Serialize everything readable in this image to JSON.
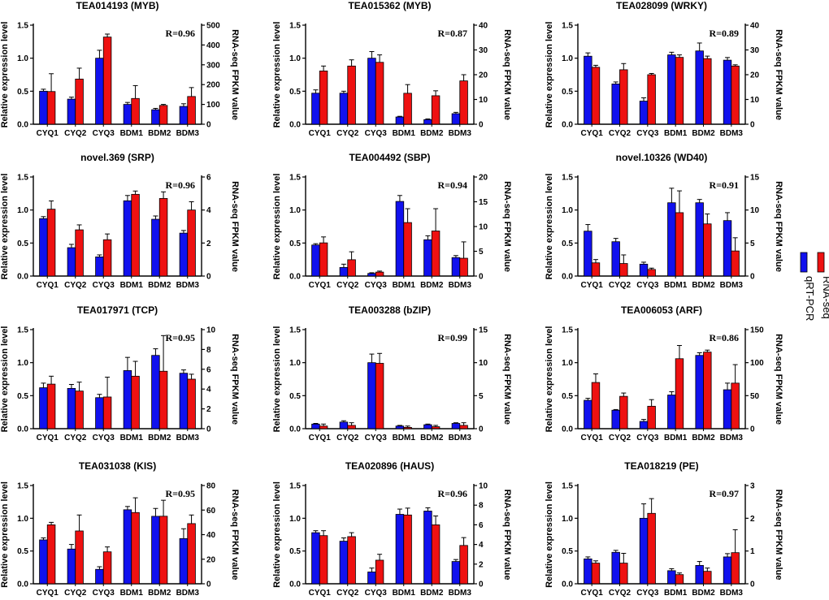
{
  "figure": {
    "colors": {
      "qrt": "#1111ee",
      "rnaseq": "#ee1111"
    },
    "legend": {
      "qrt_label": "qRT-PCR",
      "rnaseq_label": "RNA-seq"
    }
  },
  "chart_data": [
    {
      "type": "bar",
      "title": "TEA014193 (MYB)",
      "r_label": "R=0.96",
      "categories": [
        "CYQ1",
        "CYQ2",
        "CYQ3",
        "BDM1",
        "BDM2",
        "BDM3"
      ],
      "ylabel": "Relative expression level",
      "y2label": "RNA-seq FPKM value",
      "ylim": [
        0,
        1.5
      ],
      "yticks": [
        0,
        0.5,
        1.0,
        1.5
      ],
      "ytick_labels": [
        "0.0",
        "0.5",
        "1.0",
        "1.5"
      ],
      "y2lim": [
        0,
        500
      ],
      "y2ticks": [
        0,
        100,
        200,
        300,
        400,
        500
      ],
      "series": [
        {
          "name": "qRT-PCR",
          "axis": "left",
          "values": [
            0.5,
            0.38,
            1.0,
            0.3,
            0.22,
            0.27
          ],
          "errors": [
            0.03,
            0.03,
            0.12,
            0.03,
            0.02,
            0.04
          ]
        },
        {
          "name": "RNA-seq",
          "axis": "right",
          "values": [
            165,
            228,
            440,
            130,
            95,
            140
          ],
          "errors": [
            90,
            55,
            15,
            65,
            5,
            45
          ]
        }
      ]
    },
    {
      "type": "bar",
      "title": "TEA015362 (MYB)",
      "r_label": "R=0.87",
      "categories": [
        "CYQ1",
        "CYQ2",
        "CYQ3",
        "BDM1",
        "BDM2",
        "BDM3"
      ],
      "ylabel": "Relative expression level",
      "y2label": "RNA-seq FPKM value",
      "ylim": [
        0,
        1.5
      ],
      "yticks": [
        0,
        0.5,
        1.0,
        1.5
      ],
      "ytick_labels": [
        "0.0",
        "0.5",
        "1.0",
        "1.5"
      ],
      "y2lim": [
        0,
        40
      ],
      "y2ticks": [
        0,
        10,
        20,
        30,
        40
      ],
      "series": [
        {
          "name": "qRT-PCR",
          "axis": "left",
          "values": [
            0.47,
            0.47,
            1.0,
            0.11,
            0.07,
            0.16
          ],
          "errors": [
            0.05,
            0.03,
            0.1,
            0.01,
            0.01,
            0.02
          ]
        },
        {
          "name": "RNA-seq",
          "axis": "right",
          "values": [
            21.5,
            23.5,
            25,
            12.5,
            11.5,
            17.5
          ],
          "errors": [
            2,
            2.5,
            3,
            3.5,
            2,
            2.5
          ]
        }
      ]
    },
    {
      "type": "bar",
      "title": "TEA028099 (WRKY)",
      "r_label": "R=0.89",
      "categories": [
        "CYQ1",
        "CYQ2",
        "CYQ3",
        "BDM1",
        "BDM2",
        "BDM3"
      ],
      "ylabel": "Relative expression level",
      "y2label": "RNA-seq FPKM value",
      "ylim": [
        0,
        1.5
      ],
      "yticks": [
        0,
        0.5,
        1.0,
        1.5
      ],
      "ytick_labels": [
        "0.0",
        "0.5",
        "1.0",
        "1.5"
      ],
      "y2lim": [
        0,
        40
      ],
      "y2ticks": [
        0,
        10,
        20,
        30,
        40
      ],
      "series": [
        {
          "name": "qRT-PCR",
          "axis": "left",
          "values": [
            1.03,
            0.61,
            0.35,
            1.05,
            1.11,
            0.97
          ],
          "errors": [
            0.05,
            0.03,
            0.05,
            0.04,
            0.12,
            0.04
          ]
        },
        {
          "name": "RNA-seq",
          "axis": "right",
          "values": [
            23,
            22,
            20,
            27,
            26.5,
            23.5
          ],
          "errors": [
            0.8,
            2.5,
            0.5,
            1,
            1,
            0.5
          ]
        }
      ]
    },
    {
      "type": "bar",
      "title": "novel.369 (SRP)",
      "r_label": "R=0.96",
      "categories": [
        "CYQ1",
        "CYQ2",
        "CYQ3",
        "BDM1",
        "BDM2",
        "BDM3"
      ],
      "ylabel": "Relative expression level",
      "y2label": "RNA-seq FPKM value",
      "ylim": [
        0,
        1.5
      ],
      "yticks": [
        0,
        0.5,
        1.0,
        1.5
      ],
      "ytick_labels": [
        "0.0",
        "0.5",
        "1.0",
        "1.5"
      ],
      "y2lim": [
        0,
        6
      ],
      "y2ticks": [
        0,
        2,
        4,
        6
      ],
      "series": [
        {
          "name": "qRT-PCR",
          "axis": "left",
          "values": [
            0.87,
            0.43,
            0.29,
            1.14,
            0.86,
            0.65
          ],
          "errors": [
            0.03,
            0.05,
            0.03,
            0.08,
            0.05,
            0.04
          ]
        },
        {
          "name": "RNA-seq",
          "axis": "right",
          "values": [
            4.05,
            2.8,
            2.2,
            4.95,
            4.7,
            4.0
          ],
          "errors": [
            0.5,
            0.3,
            0.35,
            0.2,
            0.4,
            0.5
          ]
        }
      ]
    },
    {
      "type": "bar",
      "title": "TEA004492 (SBP)",
      "r_label": "R=0.94",
      "categories": [
        "CYQ1",
        "CYQ2",
        "CYQ3",
        "BDM1",
        "BDM2",
        "BDM3"
      ],
      "ylabel": "Relative expression level",
      "y2label": "RNA-seq FPKM value",
      "ylim": [
        0,
        1.5
      ],
      "yticks": [
        0,
        0.5,
        1.0,
        1.5
      ],
      "ytick_labels": [
        "0.0",
        "0.5",
        "1.0",
        "1.5"
      ],
      "y2lim": [
        0,
        20
      ],
      "y2ticks": [
        0,
        5,
        10,
        15,
        20
      ],
      "series": [
        {
          "name": "qRT-PCR",
          "axis": "left",
          "values": [
            0.47,
            0.13,
            0.04,
            1.13,
            0.55,
            0.28
          ],
          "errors": [
            0.02,
            0.05,
            0.01,
            0.09,
            0.06,
            0.03
          ]
        },
        {
          "name": "RNA-seq",
          "axis": "right",
          "values": [
            6.7,
            3.3,
            0.8,
            10.8,
            9.1,
            3.6
          ],
          "errors": [
            1.2,
            1.6,
            0.2,
            2.8,
            4.5,
            3.3
          ]
        }
      ]
    },
    {
      "type": "bar",
      "title": "novel.10326 (WD40)",
      "r_label": "R=0.91",
      "categories": [
        "CYQ1",
        "CYQ2",
        "CYQ3",
        "BDM1",
        "BDM2",
        "BDM3"
      ],
      "ylabel": "Relative expression level",
      "y2label": "RNA-seq FPKM value",
      "ylim": [
        0,
        1.5
      ],
      "yticks": [
        0,
        0.5,
        1.0,
        1.5
      ],
      "ytick_labels": [
        "0.0",
        "0.5",
        "1.0",
        "1.5"
      ],
      "y2lim": [
        0,
        15
      ],
      "y2ticks": [
        0,
        5,
        10,
        15
      ],
      "series": [
        {
          "name": "qRT-PCR",
          "axis": "left",
          "values": [
            0.68,
            0.52,
            0.18,
            1.11,
            1.11,
            0.84
          ],
          "errors": [
            0.1,
            0.05,
            0.03,
            0.22,
            0.05,
            0.12
          ]
        },
        {
          "name": "RNA-seq",
          "axis": "right",
          "values": [
            2.0,
            1.9,
            1.0,
            9.6,
            7.9,
            3.8
          ],
          "errors": [
            0.5,
            1.3,
            0.2,
            3.3,
            1.5,
            2
          ]
        }
      ]
    },
    {
      "type": "bar",
      "title": "TEA017971 (TCP)",
      "r_label": "R=0.95",
      "categories": [
        "CYQ1",
        "CYQ2",
        "CYQ3",
        "BDM1",
        "BDM2",
        "BDM3"
      ],
      "ylabel": "Relative expression level",
      "y2label": "RNA-seq FPKM value",
      "ylim": [
        0,
        1.5
      ],
      "yticks": [
        0,
        0.5,
        1.0,
        1.5
      ],
      "ytick_labels": [
        "0.0",
        "0.5",
        "1.0",
        "1.5"
      ],
      "y2lim": [
        0,
        10
      ],
      "y2ticks": [
        0,
        2,
        4,
        6,
        8,
        10
      ],
      "series": [
        {
          "name": "qRT-PCR",
          "axis": "left",
          "values": [
            0.62,
            0.61,
            0.47,
            0.88,
            1.11,
            0.84
          ],
          "errors": [
            0.07,
            0.06,
            0.05,
            0.2,
            0.1,
            0.05
          ]
        },
        {
          "name": "RNA-seq",
          "axis": "right",
          "values": [
            4.5,
            3.8,
            3.2,
            5.3,
            5.8,
            5.0
          ],
          "errors": [
            0.8,
            0.9,
            2,
            1.5,
            3.6,
            0.5
          ]
        }
      ]
    },
    {
      "type": "bar",
      "title": "TEA003288 (bZIP)",
      "r_label": "R=0.99",
      "categories": [
        "CYQ1",
        "CYQ2",
        "CYQ3",
        "BDM1",
        "BDM2",
        "BDM3"
      ],
      "ylabel": "Relative expression level",
      "y2label": "RNA-seq FPKM value",
      "ylim": [
        0,
        1.5
      ],
      "yticks": [
        0,
        0.5,
        1.0,
        1.5
      ],
      "ytick_labels": [
        "0.0",
        "0.5",
        "1.0",
        "1.5"
      ],
      "y2lim": [
        0,
        15
      ],
      "y2ticks": [
        0,
        5,
        10,
        15
      ],
      "series": [
        {
          "name": "qRT-PCR",
          "axis": "left",
          "values": [
            0.07,
            0.1,
            1.0,
            0.04,
            0.06,
            0.08
          ],
          "errors": [
            0.01,
            0.02,
            0.13,
            0.01,
            0.01,
            0.01
          ]
        },
        {
          "name": "RNA-seq",
          "axis": "right",
          "values": [
            0.4,
            0.5,
            9.9,
            0.2,
            0.3,
            0.5
          ],
          "errors": [
            0.3,
            0.4,
            1.5,
            0.2,
            0.2,
            0.4
          ]
        }
      ]
    },
    {
      "type": "bar",
      "title": "TEA006053 (ARF)",
      "r_label": "R=0.86",
      "categories": [
        "CYQ1",
        "CYQ2",
        "CYQ3",
        "BDM1",
        "BDM2",
        "BDM3"
      ],
      "ylabel": "Relative expression level",
      "y2label": "RNA-seq FPKM value",
      "ylim": [
        0,
        1.5
      ],
      "yticks": [
        0,
        0.5,
        1.0,
        1.5
      ],
      "ytick_labels": [
        "0.0",
        "0.5",
        "1.0",
        "1.5"
      ],
      "y2lim": [
        0,
        150
      ],
      "y2ticks": [
        0,
        50,
        100,
        150
      ],
      "series": [
        {
          "name": "qRT-PCR",
          "axis": "left",
          "values": [
            0.43,
            0.28,
            0.11,
            0.51,
            1.11,
            0.59
          ],
          "errors": [
            0.03,
            0.01,
            0.03,
            0.05,
            0.04,
            0.1
          ]
        },
        {
          "name": "RNA-seq",
          "axis": "right",
          "values": [
            70,
            49,
            34,
            106,
            116,
            69
          ],
          "errors": [
            13,
            5,
            10,
            20,
            3,
            28
          ]
        }
      ]
    },
    {
      "type": "bar",
      "title": "TEA031038 (KIS)",
      "r_label": "R=0.95",
      "categories": [
        "CYQ1",
        "CYQ2",
        "CYQ3",
        "BDM1",
        "BDM2",
        "BDM3"
      ],
      "ylabel": "Relative expression level",
      "y2label": "RNA-seq FPKM value",
      "ylim": [
        0,
        1.5
      ],
      "yticks": [
        0,
        0.5,
        1.0,
        1.5
      ],
      "ytick_labels": [
        "0.0",
        "0.5",
        "1.0",
        "1.5"
      ],
      "y2lim": [
        0,
        80
      ],
      "y2ticks": [
        0,
        20,
        40,
        60,
        80
      ],
      "series": [
        {
          "name": "qRT-PCR",
          "axis": "left",
          "values": [
            0.67,
            0.53,
            0.22,
            1.13,
            1.03,
            0.69
          ],
          "errors": [
            0.03,
            0.07,
            0.04,
            0.05,
            0.12,
            0.15
          ]
        },
        {
          "name": "RNA-seq",
          "axis": "right",
          "values": [
            48,
            43,
            26,
            58,
            55,
            49
          ],
          "errors": [
            2,
            13,
            4,
            12,
            13,
            7
          ]
        }
      ]
    },
    {
      "type": "bar",
      "title": "TEA020896 (HAUS)",
      "r_label": "R=0.96",
      "categories": [
        "CYQ1",
        "CYQ2",
        "CYQ3",
        "BDM1",
        "BDM2",
        "BDM3"
      ],
      "ylabel": "Relative expression level",
      "y2label": "RNA-seq FPKM value",
      "ylim": [
        0,
        1.5
      ],
      "yticks": [
        0,
        0.5,
        1.0,
        1.5
      ],
      "ytick_labels": [
        "0.0",
        "0.5",
        "1.0",
        "1.5"
      ],
      "y2lim": [
        0,
        10
      ],
      "y2ticks": [
        0,
        2,
        4,
        6,
        8,
        10
      ],
      "series": [
        {
          "name": "qRT-PCR",
          "axis": "left",
          "values": [
            0.78,
            0.65,
            0.18,
            1.06,
            1.11,
            0.34
          ],
          "errors": [
            0.03,
            0.05,
            0.06,
            0.08,
            0.05,
            0.03
          ]
        },
        {
          "name": "RNA-seq",
          "axis": "right",
          "values": [
            4.9,
            4.8,
            2.4,
            7.0,
            6.0,
            3.9
          ],
          "errors": [
            0.5,
            0.4,
            0.6,
            0.7,
            0.9,
            0.8
          ]
        }
      ]
    },
    {
      "type": "bar",
      "title": "TEA018219 (PE)",
      "r_label": "R=0.97",
      "categories": [
        "CYQ1",
        "CYQ2",
        "CYQ3",
        "BDM1",
        "BDM2",
        "BDM3"
      ],
      "ylabel": "Relative expression level",
      "y2label": "RNA-seq FPKM value",
      "ylim": [
        0,
        1.5
      ],
      "yticks": [
        0,
        0.5,
        1.0,
        1.5
      ],
      "ytick_labels": [
        "0.0",
        "0.5",
        "1.0",
        "1.5"
      ],
      "y2lim": [
        0,
        3
      ],
      "y2ticks": [
        0,
        1,
        2,
        3
      ],
      "series": [
        {
          "name": "qRT-PCR",
          "axis": "left",
          "values": [
            0.38,
            0.48,
            1.0,
            0.2,
            0.28,
            0.41
          ],
          "errors": [
            0.03,
            0.03,
            0.22,
            0.03,
            0.06,
            0.05
          ]
        },
        {
          "name": "RNA-seq",
          "axis": "right",
          "values": [
            0.63,
            0.63,
            2.15,
            0.28,
            0.38,
            0.95
          ],
          "errors": [
            0.07,
            0.3,
            0.45,
            0.05,
            0.1,
            0.7
          ]
        }
      ]
    }
  ]
}
